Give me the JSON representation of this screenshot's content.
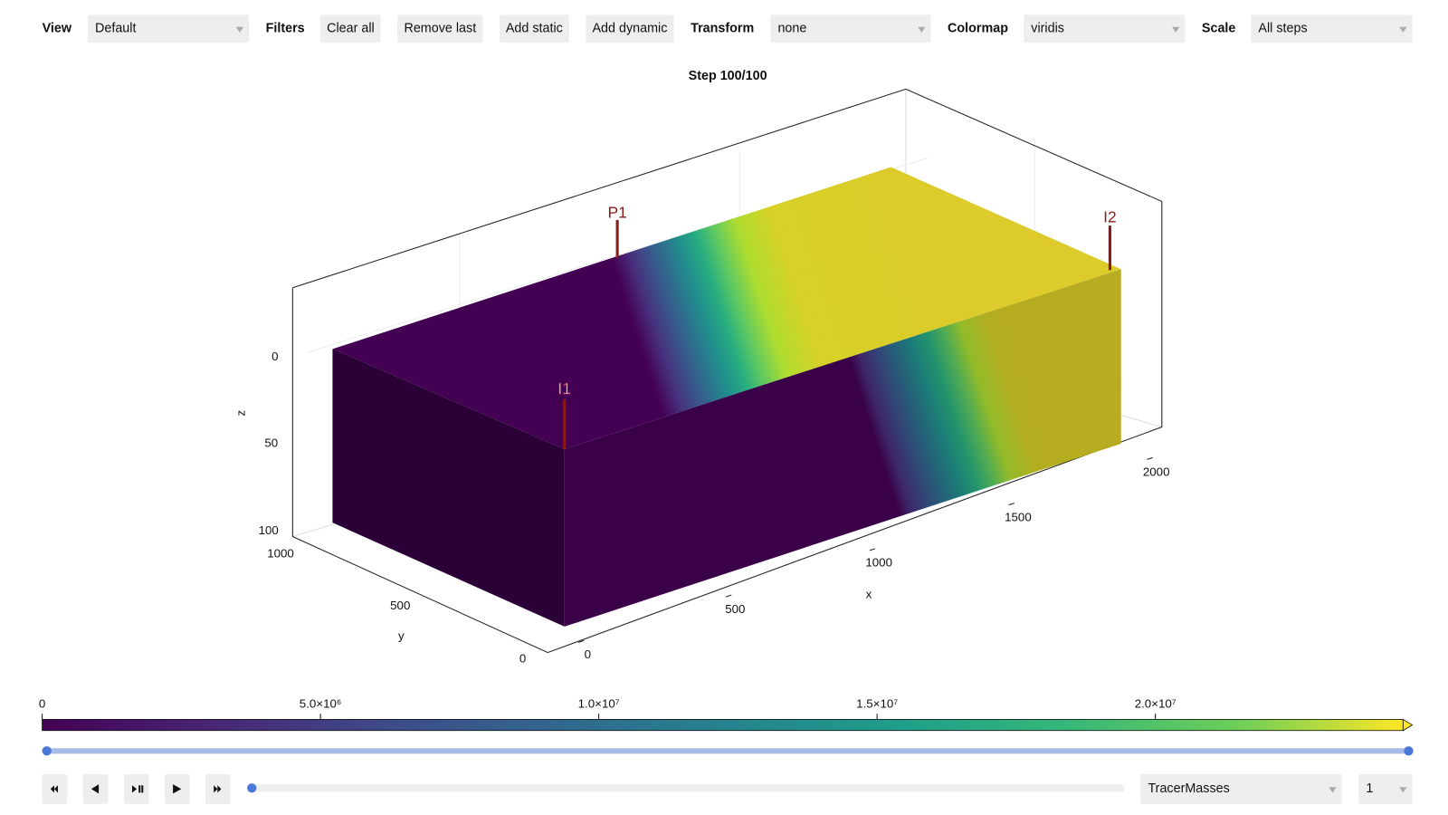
{
  "toolbar": {
    "view_label": "View",
    "view_value": "Default",
    "filters_label": "Filters",
    "buttons": [
      "Clear all",
      "Remove last",
      "Add static",
      "Add dynamic"
    ],
    "transform_label": "Transform",
    "transform_value": "none",
    "colormap_label": "Colormap",
    "colormap_value": "viridis",
    "scale_label": "Scale",
    "scale_value": "All steps"
  },
  "plot": {
    "title": "Step 100/100",
    "x_label": "x",
    "y_label": "y",
    "z_label": "z",
    "x_ticks": [
      "0",
      "500",
      "1000",
      "1500",
      "2000"
    ],
    "y_ticks": [
      "0",
      "500",
      "1000"
    ],
    "z_ticks": [
      "0",
      "50",
      "100"
    ],
    "wells": [
      "P1",
      "I1",
      "I2"
    ]
  },
  "colorbar": {
    "ticks": [
      "0",
      "5.0×10⁶",
      "1.0×10⁷",
      "1.5×10⁷",
      "2.0×10⁷"
    ]
  },
  "controls": {
    "variable": "TracerMasses",
    "component": "1"
  }
}
